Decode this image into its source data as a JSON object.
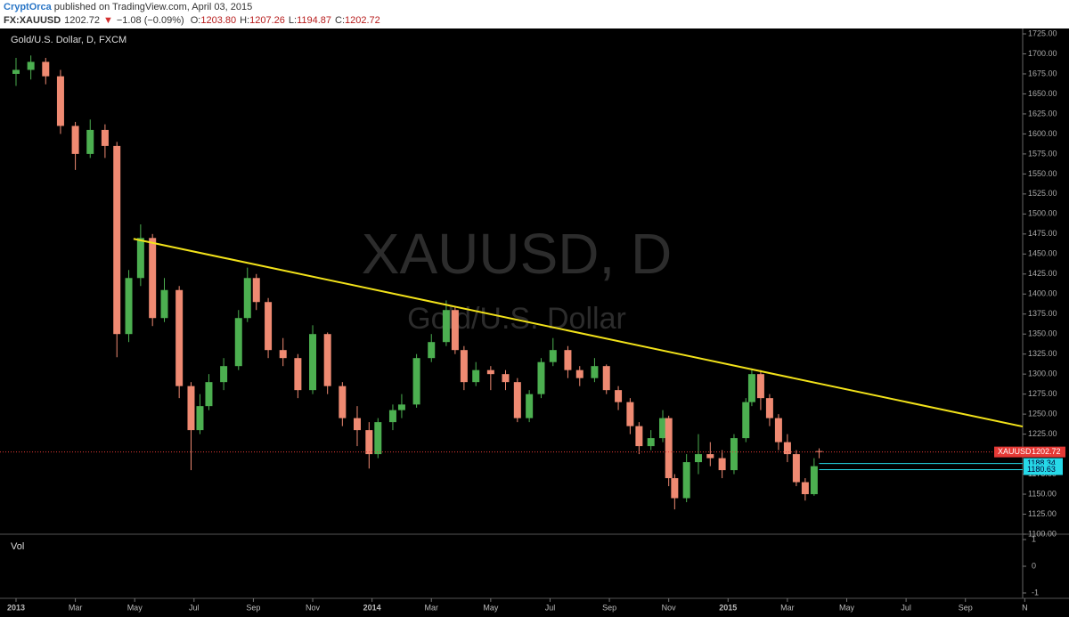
{
  "header": {
    "author": "CryptOrca",
    "published": "published on TradingView.com, April 03, 2015",
    "symbol": "FX:XAUUSD",
    "last": "1202.72",
    "arrow": "▼",
    "change": "−1.08 (−0.09%)",
    "ohlc": [
      {
        "label": "O:",
        "value": "1203.80"
      },
      {
        "label": "H:",
        "value": "1207.26"
      },
      {
        "label": "L:",
        "value": "1194.87"
      },
      {
        "label": "C:",
        "value": "1202.72"
      }
    ]
  },
  "chart_data": {
    "type": "candlestick",
    "legend_title": "Gold/U.S. Dollar, D, FXCM",
    "watermark": [
      "XAUUSD, D",
      "Gold/U.S. Dollar"
    ],
    "up_color": "#4caf50",
    "down_color": "#ef8a72",
    "x": [
      0,
      0.5,
      1.0,
      1.5,
      2.0,
      2.5,
      3.0,
      3.4,
      3.8,
      4.2,
      4.6,
      5.0,
      5.5,
      5.9,
      6.2,
      6.5,
      7.0,
      7.5,
      7.8,
      8.1,
      8.5,
      9.0,
      9.5,
      10.0,
      10.5,
      11.0,
      11.5,
      11.9,
      12.2,
      12.7,
      13.0,
      13.5,
      14.0,
      14.5,
      14.8,
      15.1,
      15.5,
      16.0,
      16.5,
      16.9,
      17.3,
      17.7,
      18.1,
      18.6,
      19.0,
      19.5,
      19.9,
      20.3,
      20.7,
      21.0,
      21.4,
      21.8,
      22.0,
      22.2,
      22.6,
      23.0,
      23.4,
      23.8,
      24.2,
      24.6,
      24.8,
      25.1,
      25.4,
      25.7,
      26.0,
      26.3,
      26.6,
      26.9,
      27.07
    ],
    "open": [
      1675,
      1680,
      1690,
      1672,
      1610,
      1575,
      1605,
      1585,
      1350,
      1420,
      1470,
      1370,
      1405,
      1285,
      1230,
      1260,
      1290,
      1310,
      1370,
      1420,
      1390,
      1330,
      1320,
      1280,
      1350,
      1285,
      1245,
      1230,
      1200,
      1240,
      1255,
      1262,
      1320,
      1340,
      1380,
      1330,
      1290,
      1305,
      1300,
      1290,
      1245,
      1275,
      1315,
      1330,
      1305,
      1295,
      1310,
      1280,
      1265,
      1235,
      1210,
      1220,
      1245,
      1170,
      1145,
      1190,
      1200,
      1195,
      1180,
      1220,
      1265,
      1300,
      1270,
      1245,
      1215,
      1200,
      1165,
      1150,
      1203.8
    ],
    "high": [
      1695,
      1698,
      1695,
      1680,
      1615,
      1618,
      1612,
      1590,
      1430,
      1487,
      1475,
      1420,
      1410,
      1290,
      1275,
      1300,
      1320,
      1380,
      1433,
      1425,
      1395,
      1345,
      1325,
      1361,
      1352,
      1290,
      1260,
      1240,
      1245,
      1262,
      1275,
      1325,
      1350,
      1392,
      1385,
      1335,
      1315,
      1310,
      1305,
      1295,
      1280,
      1320,
      1345,
      1335,
      1310,
      1320,
      1312,
      1285,
      1270,
      1240,
      1230,
      1255,
      1248,
      1175,
      1200,
      1225,
      1215,
      1205,
      1225,
      1270,
      1307,
      1305,
      1275,
      1250,
      1225,
      1205,
      1170,
      1195,
      1207.26
    ],
    "low": [
      1660,
      1668,
      1662,
      1600,
      1555,
      1570,
      1570,
      1321,
      1340,
      1410,
      1360,
      1365,
      1270,
      1180,
      1225,
      1255,
      1280,
      1305,
      1365,
      1380,
      1320,
      1310,
      1270,
      1275,
      1275,
      1235,
      1210,
      1182,
      1195,
      1230,
      1245,
      1258,
      1315,
      1335,
      1325,
      1280,
      1285,
      1280,
      1280,
      1240,
      1240,
      1270,
      1310,
      1295,
      1285,
      1290,
      1275,
      1255,
      1225,
      1200,
      1205,
      1215,
      1160,
      1131,
      1140,
      1175,
      1185,
      1170,
      1175,
      1215,
      1260,
      1255,
      1235,
      1205,
      1190,
      1160,
      1142,
      1148,
      1194.87
    ],
    "close": [
      1680,
      1690,
      1672,
      1610,
      1575,
      1605,
      1585,
      1350,
      1420,
      1470,
      1370,
      1405,
      1285,
      1230,
      1260,
      1290,
      1310,
      1370,
      1420,
      1390,
      1330,
      1320,
      1280,
      1350,
      1285,
      1245,
      1230,
      1200,
      1240,
      1255,
      1262,
      1320,
      1340,
      1380,
      1330,
      1290,
      1305,
      1300,
      1290,
      1245,
      1275,
      1315,
      1330,
      1305,
      1295,
      1310,
      1280,
      1265,
      1235,
      1210,
      1220,
      1245,
      1170,
      1145,
      1190,
      1200,
      1195,
      1180,
      1220,
      1265,
      1300,
      1270,
      1245,
      1215,
      1200,
      1165,
      1150,
      1185,
      1202.72
    ],
    "xlim": [
      -0.54,
      33.93
    ],
    "xticks": [
      {
        "value": 0,
        "label": "2013"
      },
      {
        "value": 2,
        "label": "Mar"
      },
      {
        "value": 4,
        "label": "May"
      },
      {
        "value": 6,
        "label": "Jul"
      },
      {
        "value": 8,
        "label": "Sep"
      },
      {
        "value": 10,
        "label": "Nov"
      },
      {
        "value": 12,
        "label": "2014"
      },
      {
        "value": 14,
        "label": "Mar"
      },
      {
        "value": 16,
        "label": "May"
      },
      {
        "value": 18,
        "label": "Jul"
      },
      {
        "value": 20,
        "label": "Sep"
      },
      {
        "value": 22,
        "label": "Nov"
      },
      {
        "value": 24,
        "label": "2015"
      },
      {
        "value": 26,
        "label": "Mar"
      },
      {
        "value": 28,
        "label": "May"
      },
      {
        "value": 30,
        "label": "Jul"
      },
      {
        "value": 32,
        "label": "Sep"
      },
      {
        "value": 34,
        "label": "N"
      }
    ],
    "ylim": [
      1100,
      1731.7
    ],
    "yticks": [
      {
        "value": 1100,
        "label": "1100.00"
      },
      {
        "value": 1125,
        "label": "1125.00"
      },
      {
        "value": 1150,
        "label": "1150.00"
      },
      {
        "value": 1175,
        "label": "1175.00"
      },
      {
        "value": 1200,
        "label": "1200.00"
      },
      {
        "value": 1225,
        "label": "1225.00"
      },
      {
        "value": 1250,
        "label": "1250.00"
      },
      {
        "value": 1275,
        "label": "1275.00"
      },
      {
        "value": 1300,
        "label": "1300.00"
      },
      {
        "value": 1325,
        "label": "1325.00"
      },
      {
        "value": 1350,
        "label": "1350.00"
      },
      {
        "value": 1375,
        "label": "1375.00"
      },
      {
        "value": 1400,
        "label": "1400.00"
      },
      {
        "value": 1425,
        "label": "1425.00"
      },
      {
        "value": 1450,
        "label": "1450.00"
      },
      {
        "value": 1475,
        "label": "1475.00"
      },
      {
        "value": 1500,
        "label": "1500.00"
      },
      {
        "value": 1525,
        "label": "1525.00"
      },
      {
        "value": 1550,
        "label": "1550.00"
      },
      {
        "value": 1575,
        "label": "1575.00"
      },
      {
        "value": 1600,
        "label": "1600.00"
      },
      {
        "value": 1625,
        "label": "1625.00"
      },
      {
        "value": 1650,
        "label": "1650.00"
      },
      {
        "value": 1675,
        "label": "1675.00"
      },
      {
        "value": 1700,
        "label": "1700.00"
      },
      {
        "value": 1725,
        "label": "1725.00"
      }
    ],
    "trendline": {
      "color": "#f2e21a",
      "x": [
        3.96,
        33.93
      ],
      "y": [
        1469,
        1234.5
      ]
    },
    "last_price": {
      "name": "XAUUSD",
      "value": 1202.72,
      "color": "#e53935"
    },
    "levels": {
      "color": "#26d9e8",
      "values": [
        1188.34,
        1180.63
      ]
    },
    "vol_pane": {
      "title": "Vol",
      "ylim": [
        -1.2,
        1.2
      ],
      "yticks": [
        1,
        0,
        -1
      ]
    }
  }
}
